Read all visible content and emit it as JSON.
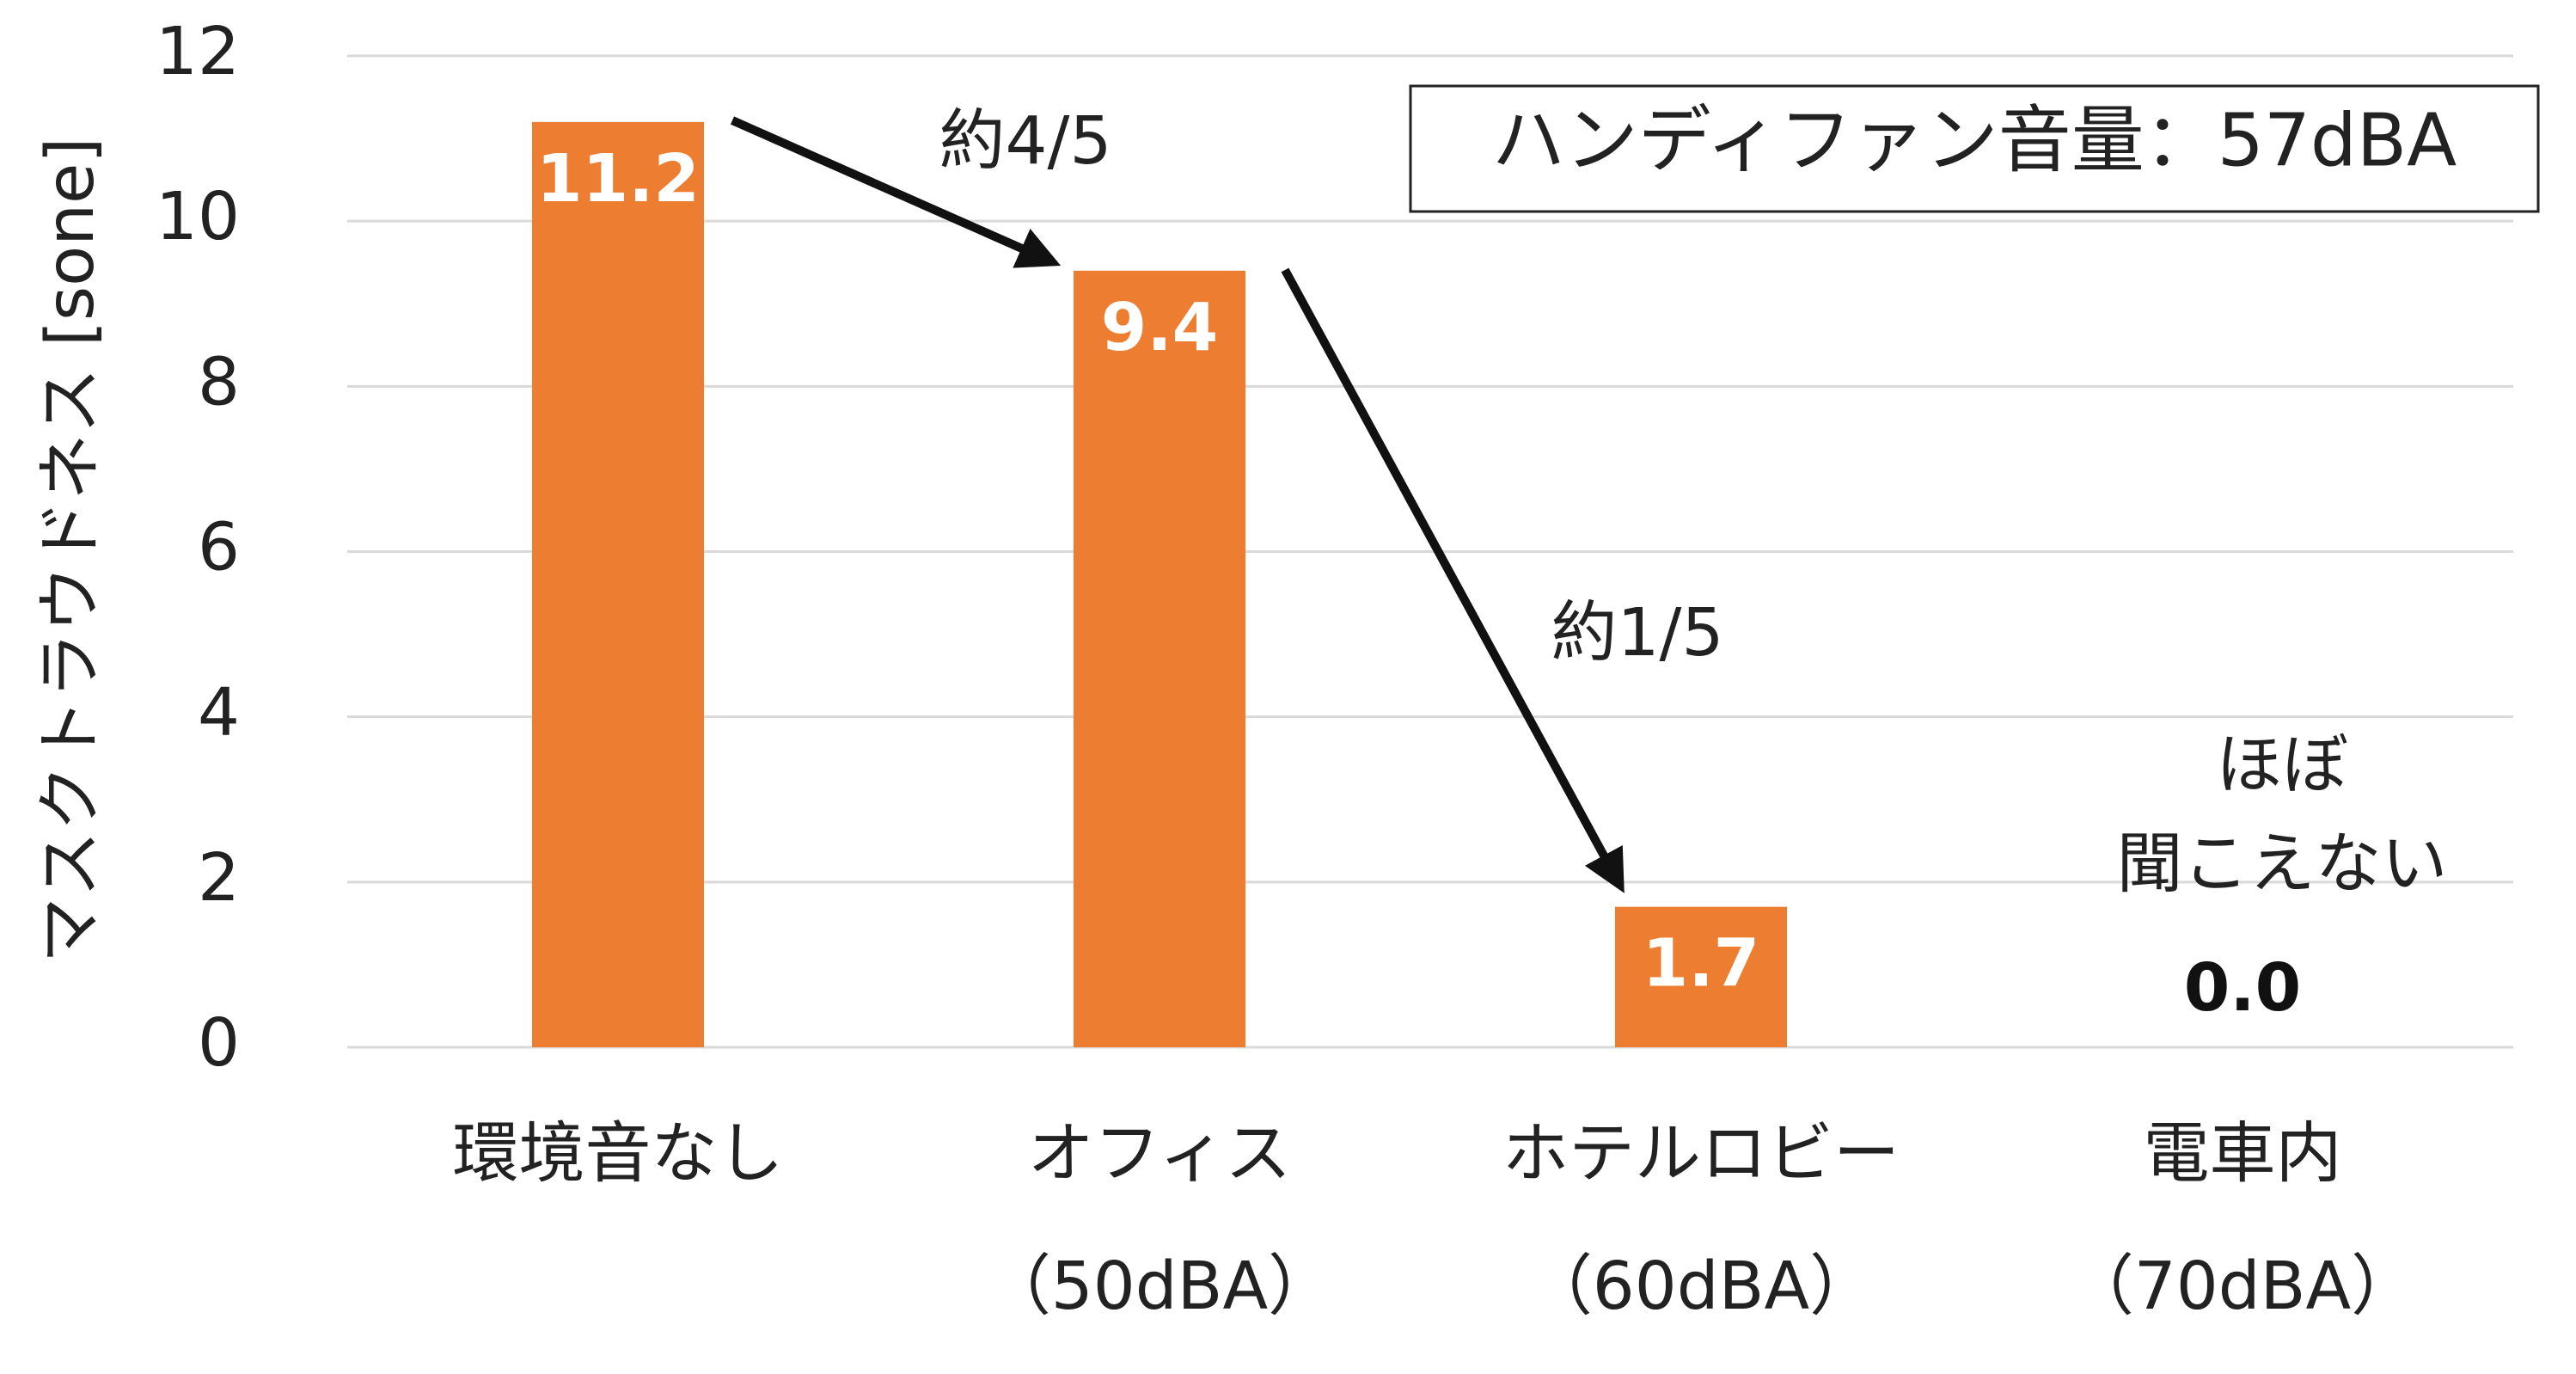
{
  "chart_data": {
    "type": "bar",
    "y_label": "マスクトラウドネス [sone]",
    "categories": [
      "環境音なし",
      "オフィス",
      "ホテルロビー",
      "電車内"
    ],
    "category_notes": [
      null,
      "（50dBA）",
      "（60dBA）",
      "（70dBA）"
    ],
    "values": [
      11.2,
      9.4,
      1.7,
      0
    ],
    "value_labels": [
      "11.2",
      "9.4",
      "1.7",
      "0.0"
    ],
    "color": "#ed7d31",
    "ylim": [
      0,
      12
    ],
    "yticks": [
      0,
      2,
      4,
      6,
      8,
      10,
      12
    ],
    "grid": true,
    "annotations": [
      "約4/5",
      "約1/5",
      "ほぼ",
      "聞こえない"
    ],
    "legend_box": "ハンディファン音量：57dBA"
  }
}
